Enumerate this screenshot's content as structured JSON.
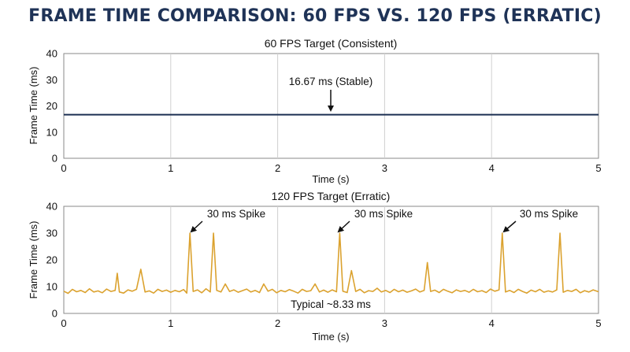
{
  "figure": {
    "title": "FRAME TIME COMPARISON: 60 FPS VS. 120 FPS (ERRATIC)",
    "title_color": "#1f3357"
  },
  "chart_data": [
    {
      "type": "line",
      "title": "60 FPS Target (Consistent)",
      "xlabel": "Time (s)",
      "ylabel": "Frame Time (ms)",
      "xlim": [
        0,
        5
      ],
      "ylim": [
        0,
        40
      ],
      "xticks": [
        0,
        1,
        2,
        3,
        4,
        5
      ],
      "yticks": [
        0,
        10,
        20,
        30,
        40
      ],
      "grid": "vertical",
      "series": [
        {
          "color": "#1b2f52",
          "x": [
            0,
            5
          ],
          "y": [
            16.67,
            16.67
          ]
        }
      ],
      "annotations": [
        {
          "text": "16.67 ms (Stable)",
          "x": 2.5,
          "y": 16.67
        }
      ]
    },
    {
      "type": "line",
      "title": "120 FPS Target (Erratic)",
      "xlabel": "Time (s)",
      "ylabel": "Frame Time (ms)",
      "xlim": [
        0,
        5
      ],
      "ylim": [
        0,
        40
      ],
      "xticks": [
        0,
        1,
        2,
        3,
        4,
        5
      ],
      "yticks": [
        0,
        10,
        20,
        30,
        40
      ],
      "grid": "vertical",
      "series": [
        {
          "color": "#dba22f",
          "x": [
            0,
            0.04,
            0.08,
            0.12,
            0.16,
            0.2,
            0.24,
            0.28,
            0.32,
            0.36,
            0.4,
            0.44,
            0.48,
            0.5,
            0.52,
            0.56,
            0.6,
            0.64,
            0.68,
            0.72,
            0.76,
            0.8,
            0.84,
            0.88,
            0.92,
            0.96,
            1.0,
            1.04,
            1.08,
            1.12,
            1.15,
            1.18,
            1.21,
            1.25,
            1.29,
            1.33,
            1.37,
            1.4,
            1.43,
            1.47,
            1.51,
            1.55,
            1.59,
            1.63,
            1.67,
            1.71,
            1.75,
            1.79,
            1.83,
            1.87,
            1.91,
            1.95,
            1.99,
            2.03,
            2.07,
            2.11,
            2.15,
            2.19,
            2.23,
            2.27,
            2.31,
            2.35,
            2.39,
            2.43,
            2.47,
            2.51,
            2.55,
            2.58,
            2.61,
            2.65,
            2.69,
            2.73,
            2.77,
            2.81,
            2.85,
            2.89,
            2.93,
            2.97,
            3.01,
            3.05,
            3.09,
            3.13,
            3.17,
            3.21,
            3.25,
            3.29,
            3.33,
            3.37,
            3.4,
            3.43,
            3.47,
            3.51,
            3.55,
            3.59,
            3.63,
            3.67,
            3.71,
            3.75,
            3.79,
            3.83,
            3.87,
            3.91,
            3.95,
            3.99,
            4.03,
            4.07,
            4.1,
            4.13,
            4.17,
            4.21,
            4.25,
            4.29,
            4.33,
            4.37,
            4.41,
            4.45,
            4.49,
            4.53,
            4.57,
            4.61,
            4.64,
            4.67,
            4.71,
            4.75,
            4.79,
            4.83,
            4.87,
            4.91,
            4.95,
            5.0
          ],
          "y": [
            8.3,
            7.5,
            9.0,
            8.1,
            8.6,
            7.8,
            9.2,
            8.0,
            8.4,
            7.7,
            9.1,
            8.2,
            8.6,
            15.0,
            8.0,
            7.6,
            8.8,
            8.3,
            9.0,
            16.5,
            8.0,
            8.4,
            7.6,
            9.0,
            8.2,
            8.7,
            7.9,
            8.6,
            8.1,
            8.9,
            7.6,
            30.0,
            8.2,
            8.8,
            7.7,
            9.2,
            8.0,
            30.0,
            8.6,
            8.0,
            11.0,
            8.2,
            8.8,
            7.9,
            8.5,
            9.1,
            8.0,
            8.6,
            7.8,
            11.0,
            8.3,
            9.0,
            7.7,
            8.6,
            8.1,
            8.9,
            8.3,
            7.6,
            9.0,
            8.2,
            8.5,
            11.0,
            8.0,
            8.7,
            7.9,
            8.8,
            8.1,
            30.0,
            8.3,
            7.8,
            16.0,
            8.2,
            9.0,
            7.7,
            8.5,
            8.2,
            9.4,
            8.0,
            8.6,
            7.8,
            9.0,
            8.1,
            8.7,
            7.9,
            8.4,
            9.1,
            8.0,
            8.6,
            19.0,
            8.2,
            8.7,
            7.8,
            9.0,
            8.3,
            7.7,
            8.8,
            8.2,
            8.6,
            7.9,
            9.0,
            8.1,
            8.5,
            7.8,
            9.1,
            8.3,
            8.8,
            30.0,
            8.0,
            8.6,
            7.8,
            9.0,
            8.2,
            7.6,
            8.7,
            8.1,
            9.0,
            7.9,
            8.4,
            8.0,
            8.8,
            30.0,
            7.9,
            8.6,
            8.2,
            9.0,
            7.7,
            8.5,
            8.0,
            8.8,
            8.1
          ]
        }
      ],
      "annotations": [
        {
          "text": "30 ms Spike",
          "x": 1.18,
          "y": 30
        },
        {
          "text": "30 ms Spike",
          "x": 2.58,
          "y": 30
        },
        {
          "text": "30 ms Spike",
          "x": 4.1,
          "y": 30
        },
        {
          "text": "Typical ~8.33 ms",
          "x": 2.5,
          "y": 2.5
        }
      ]
    }
  ]
}
